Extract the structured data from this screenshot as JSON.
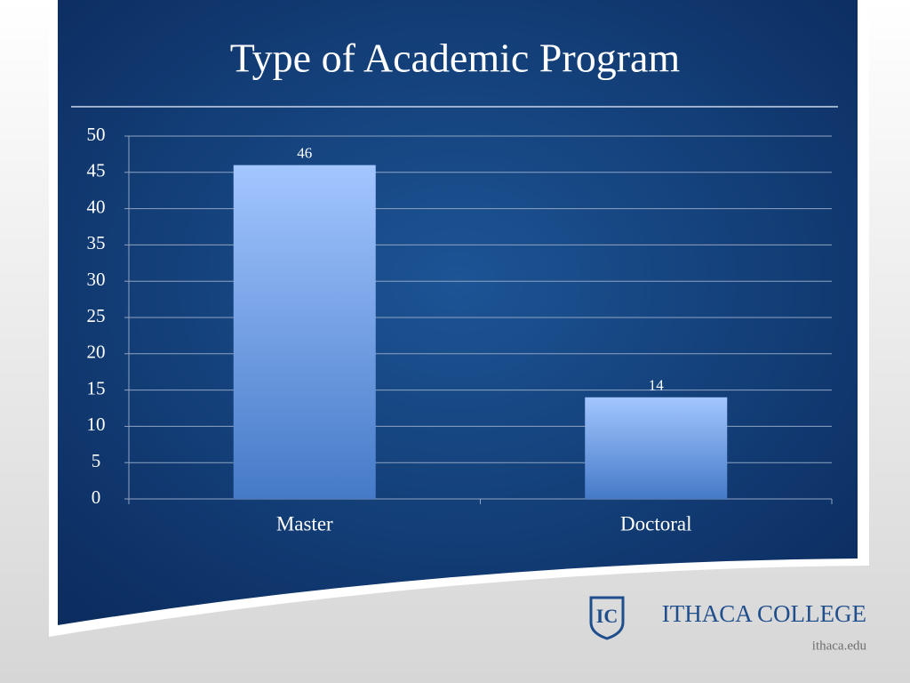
{
  "chart_data": {
    "type": "bar",
    "title": "Type of Academic Program",
    "categories": [
      "Master",
      "Doctoral"
    ],
    "values": [
      46,
      14
    ],
    "gradient": [
      "#a3c6ff",
      "#457ac8"
    ],
    "ylim": [
      0,
      50
    ],
    "yticks": [
      0,
      5,
      10,
      15,
      20,
      25,
      30,
      35,
      40,
      45,
      50
    ],
    "grid": true
  },
  "footer": {
    "logo_text": "ITHACA COLLEGE",
    "url": "ithaca.edu"
  }
}
